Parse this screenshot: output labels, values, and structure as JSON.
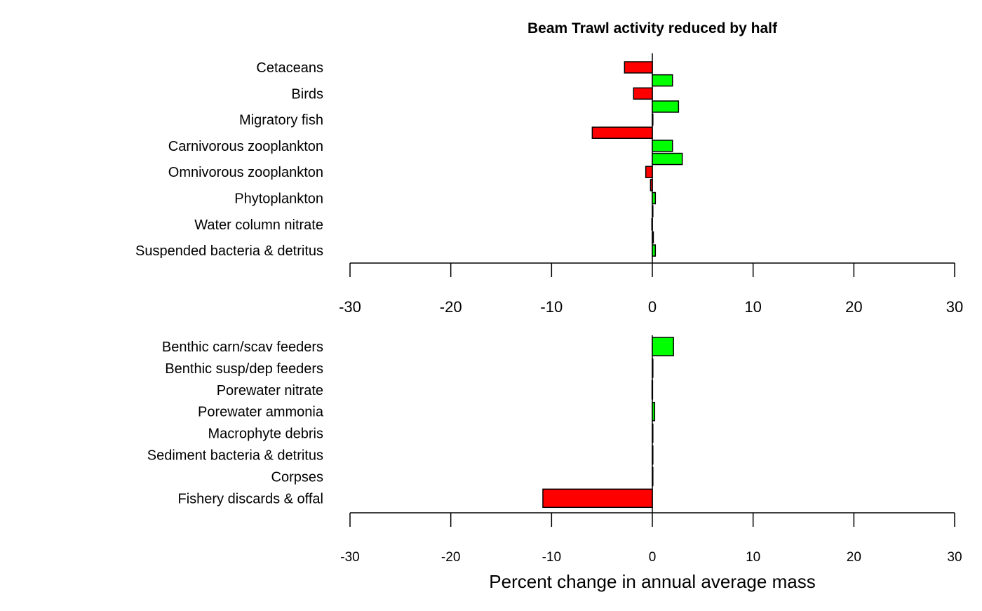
{
  "chart_data": [
    {
      "type": "bar",
      "orientation": "horizontal",
      "title": "Beam Trawl activity reduced by half",
      "xlabel": "",
      "xlim": [
        -30,
        30
      ],
      "xticks": [
        "-30",
        "-20",
        "-10",
        "0",
        "10",
        "20",
        "30"
      ],
      "grid": false,
      "categories": [
        "Cetaceans",
        "",
        "Birds",
        "",
        "Migratory fish",
        "",
        "Carnivorous zooplankton",
        "",
        "Omnivorous zooplankton",
        "",
        "Phytoplankton",
        "",
        "Water column nitrate",
        "",
        "Suspended bacteria & detritus"
      ],
      "values": [
        -2.76,
        2.0,
        -1.86,
        2.6,
        0.0,
        -5.96,
        2.0,
        2.97,
        -0.65,
        -0.18,
        0.3,
        0.0,
        -0.05,
        0.1,
        0.3
      ]
    },
    {
      "type": "bar",
      "orientation": "horizontal",
      "xlabel": "Percent change in annual average mass",
      "xlim": [
        -30,
        30
      ],
      "xticks": [
        "-30",
        "-20",
        "-10",
        "0",
        "10",
        "20",
        "30"
      ],
      "grid": false,
      "categories": [
        "Benthic carn/scav feeders",
        "Benthic susp/dep feeders",
        "Porewater nitrate",
        "Porewater ammonia",
        "Macrophyte debris",
        "Sediment bacteria & detritus",
        "Corpses",
        "Fishery discards & offal"
      ],
      "values": [
        2.1,
        0.0,
        -0.03,
        0.23,
        0.0,
        0.02,
        0.0,
        -10.86
      ]
    }
  ],
  "colors": {
    "positive": "#00ff00",
    "negative": "#ff0000",
    "outline": "#000000"
  }
}
